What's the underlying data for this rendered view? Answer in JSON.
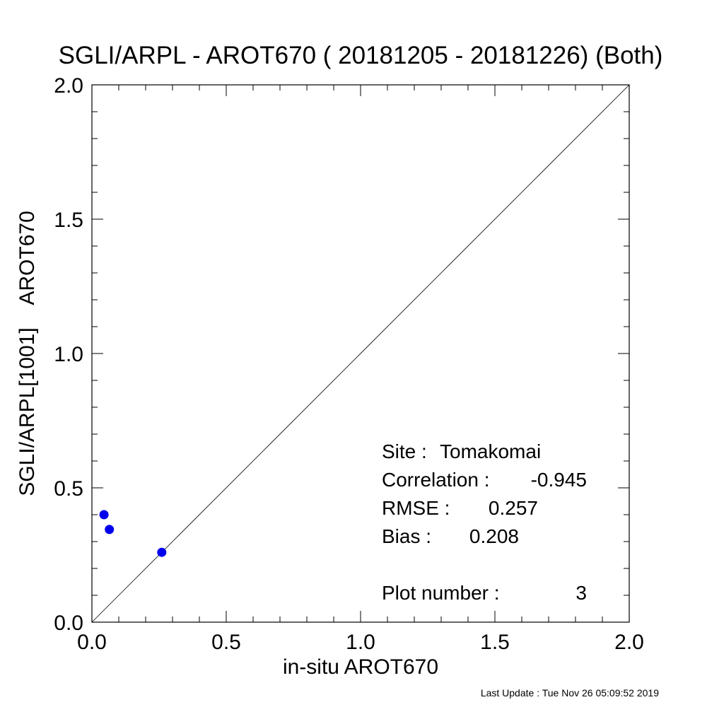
{
  "chart_data": {
    "type": "scatter",
    "title": "SGLI/ARPL - AROT670 ( 20181205 - 20181226) (Both)",
    "xlabel": "in-situ AROT670",
    "ylabel": "SGLI/ARPL[1001]    AROT670",
    "xlim": [
      0.0,
      2.0
    ],
    "ylim": [
      0.0,
      2.0
    ],
    "x_ticks": [
      "0.0",
      "0.5",
      "1.0",
      "1.5",
      "2.0"
    ],
    "y_ticks": [
      "0.0",
      "0.5",
      "1.0",
      "1.5",
      "2.0"
    ],
    "grid": false,
    "reference_line": "1:1",
    "point_color": "#0000ee",
    "points": [
      {
        "x": 0.045,
        "y": 0.4
      },
      {
        "x": 0.065,
        "y": 0.345
      },
      {
        "x": 0.26,
        "y": 0.26
      }
    ],
    "stats": [
      {
        "label": "Site :",
        "value": "Tomakomai"
      },
      {
        "label": "Correlation :",
        "value": "-0.945"
      },
      {
        "label": "RMSE :",
        "value": "0.257"
      },
      {
        "label": "Bias :",
        "value": "0.208"
      },
      {
        "label": "Plot number :",
        "value": "3"
      }
    ]
  },
  "footer": {
    "last_update": "Last Update : Tue Nov 26 05:09:52 2019"
  }
}
